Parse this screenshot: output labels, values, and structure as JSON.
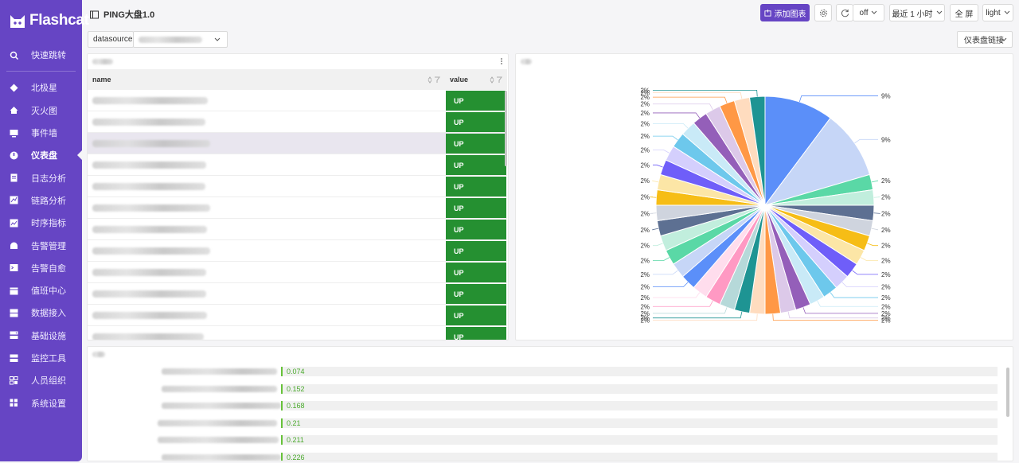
{
  "brand": {
    "name": "Flashcat"
  },
  "sidebar": {
    "items": [
      {
        "label": "快速跳转",
        "icon": "search-icon"
      },
      {
        "label": "北极星",
        "icon": "compass-icon"
      },
      {
        "label": "灭火图",
        "icon": "home-icon"
      },
      {
        "label": "事件墙",
        "icon": "monitor-icon"
      },
      {
        "label": "仪表盘",
        "icon": "dashboard-icon"
      },
      {
        "label": "日志分析",
        "icon": "document-icon"
      },
      {
        "label": "链路分析",
        "icon": "trace-icon"
      },
      {
        "label": "时序指标",
        "icon": "chart-icon"
      },
      {
        "label": "告警管理",
        "icon": "alarm-icon"
      },
      {
        "label": "告警自愈",
        "icon": "terminal-icon"
      },
      {
        "label": "值班中心",
        "icon": "calendar-icon"
      },
      {
        "label": "数据接入",
        "icon": "database-icon"
      },
      {
        "label": "基础设施",
        "icon": "server-icon"
      },
      {
        "label": "监控工具",
        "icon": "tool-icon"
      },
      {
        "label": "人员组织",
        "icon": "team-icon"
      },
      {
        "label": "系统设置",
        "icon": "settings-icon"
      }
    ]
  },
  "header": {
    "title": "PING大盘1.0",
    "add_chart": "添加图表",
    "refresh": "off",
    "time_range": "最近 1 小时",
    "fullscreen": "全 屏",
    "theme": "light"
  },
  "vars": {
    "datasource_label": "datasource",
    "dashboard_link": "仪表盘链接"
  },
  "table": {
    "col_name": "name",
    "col_value": "value",
    "rows": [
      "UP",
      "UP",
      "UP",
      "UP",
      "UP",
      "UP",
      "UP",
      "UP",
      "UP",
      "UP",
      "UP",
      "UP"
    ]
  },
  "bars": {
    "values": [
      "0.074",
      "0.152",
      "0.168",
      "0.21",
      "0.211",
      "0.226"
    ]
  },
  "colors": {
    "brand": "#6645c4",
    "up": "#259031",
    "bar": "#67c23a"
  },
  "chart_data": {
    "type": "pie",
    "title": "",
    "slices": [
      {
        "value": 9,
        "label": "9%",
        "color": "#5b8ff9"
      },
      {
        "value": 9,
        "label": "9%",
        "color": "#c6d6f7"
      },
      {
        "value": 2,
        "label": "2%",
        "color": "#5ad8a6"
      },
      {
        "value": 2,
        "label": "2%",
        "color": "#c1eedd"
      },
      {
        "value": 2,
        "label": "2%",
        "color": "#5d7092"
      },
      {
        "value": 2,
        "label": "2%",
        "color": "#cfd4de"
      },
      {
        "value": 2,
        "label": "2%",
        "color": "#f6bd16"
      },
      {
        "value": 2,
        "label": "2%",
        "color": "#fce6a6"
      },
      {
        "value": 2,
        "label": "2%",
        "color": "#6f5ef9"
      },
      {
        "value": 2,
        "label": "2%",
        "color": "#d4cffd"
      },
      {
        "value": 2,
        "label": "2%",
        "color": "#6dc8ec"
      },
      {
        "value": 2,
        "label": "2%",
        "color": "#c9eaf7"
      },
      {
        "value": 2,
        "label": "2%",
        "color": "#945fb9"
      },
      {
        "value": 2,
        "label": "2%",
        "color": "#dcc9e9"
      },
      {
        "value": 2,
        "label": "2%",
        "color": "#ff9845"
      },
      {
        "value": 2,
        "label": "2%",
        "color": "#ffdcbf"
      },
      {
        "value": 2,
        "label": "2%",
        "color": "#1e9493"
      },
      {
        "value": 2,
        "label": "2%",
        "color": "#b6d9d9"
      },
      {
        "value": 2,
        "label": "2%",
        "color": "#ff99c3"
      },
      {
        "value": 2,
        "label": "2%",
        "color": "#ffdded"
      },
      {
        "value": 2,
        "label": "2%",
        "color": "#5b8ff9"
      },
      {
        "value": 2,
        "label": "2%",
        "color": "#c6d6f7"
      },
      {
        "value": 2,
        "label": "2%",
        "color": "#5ad8a6"
      },
      {
        "value": 2,
        "label": "2%",
        "color": "#c1eedd"
      },
      {
        "value": 2,
        "label": "2%",
        "color": "#5d7092"
      },
      {
        "value": 2,
        "label": "2%",
        "color": "#cfd4de"
      },
      {
        "value": 2,
        "label": "2%",
        "color": "#f6bd16"
      },
      {
        "value": 2,
        "label": "2%",
        "color": "#fce6a6"
      },
      {
        "value": 2,
        "label": "2%",
        "color": "#6f5ef9"
      },
      {
        "value": 2,
        "label": "2%",
        "color": "#d4cffd"
      },
      {
        "value": 2,
        "label": "2%",
        "color": "#6dc8ec"
      },
      {
        "value": 2,
        "label": "2%",
        "color": "#c9eaf7"
      },
      {
        "value": 2,
        "label": "2%",
        "color": "#945fb9"
      },
      {
        "value": 2,
        "label": "2%",
        "color": "#dcc9e9"
      },
      {
        "value": 2,
        "label": "2%",
        "color": "#ff9845"
      },
      {
        "value": 2,
        "label": "2%",
        "color": "#ffdcbf"
      },
      {
        "value": 2,
        "label": "2%",
        "color": "#1e9493"
      }
    ]
  }
}
